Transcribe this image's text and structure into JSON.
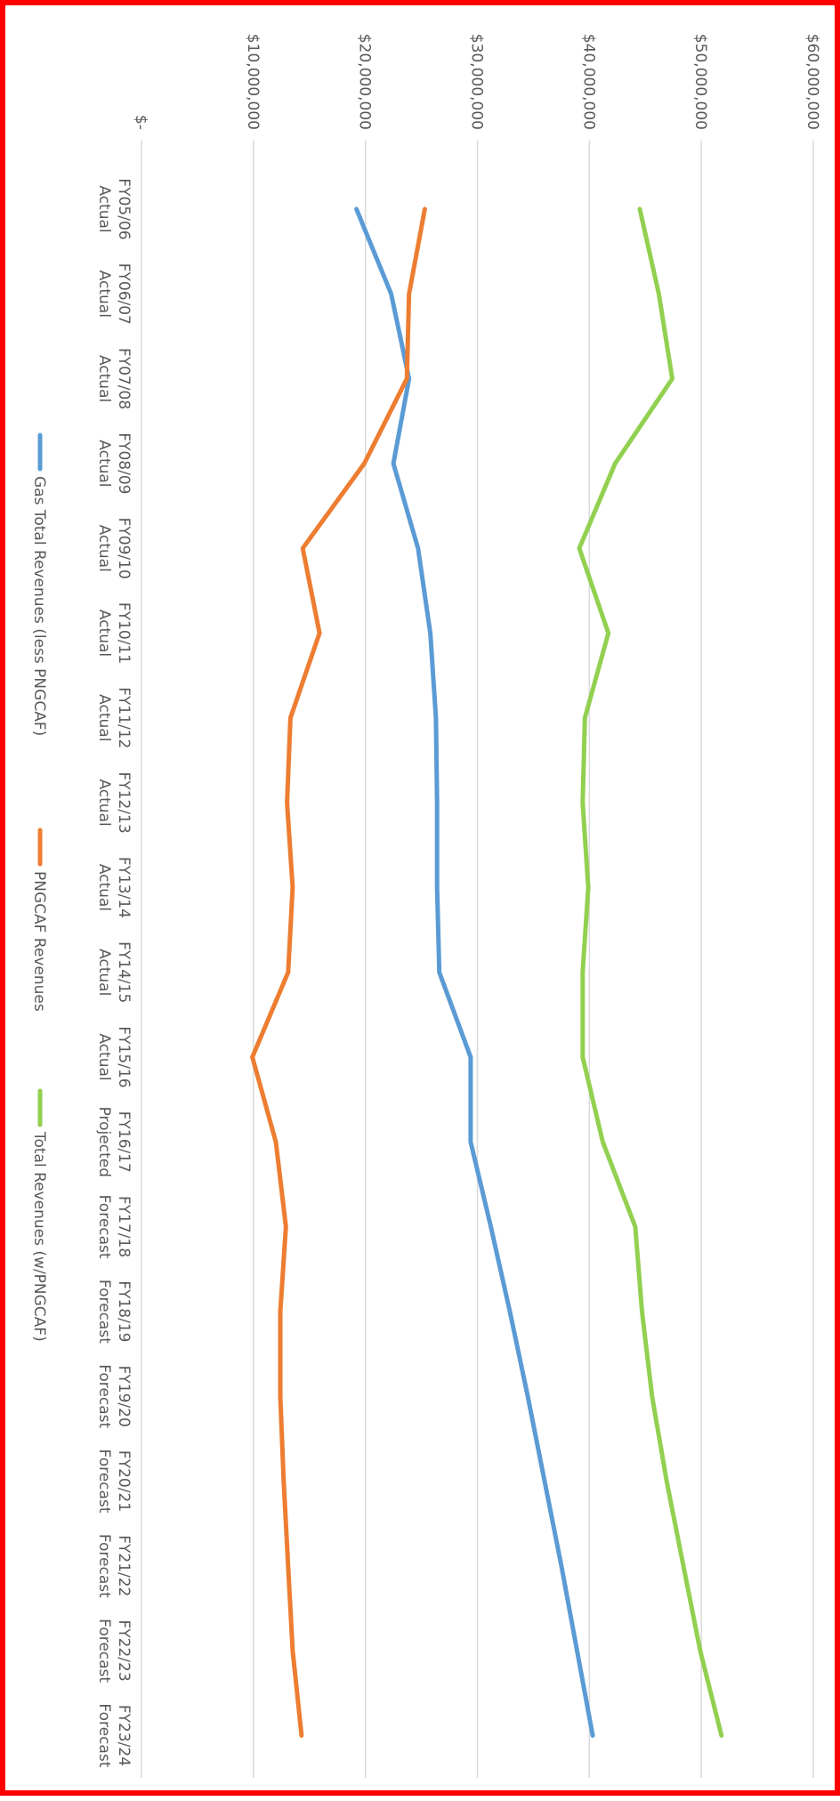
{
  "chart_data": {
    "type": "line",
    "orientation": "rotated-90-clockwise",
    "title": "",
    "xlabel": "",
    "ylabel": "",
    "categories": [
      [
        "FY05/06",
        "Actual"
      ],
      [
        "FY06/07",
        "Actual"
      ],
      [
        "FY07/08",
        "Actual"
      ],
      [
        "FY08/09",
        "Actual"
      ],
      [
        "FY09/10",
        "Actual"
      ],
      [
        "FY10/11",
        "Actual"
      ],
      [
        "FY11/12",
        "Actual"
      ],
      [
        "FY12/13",
        "Actual"
      ],
      [
        "FY13/14",
        "Actual"
      ],
      [
        "FY14/15",
        "Actual"
      ],
      [
        "FY15/16",
        "Actual"
      ],
      [
        "FY16/17",
        "Projected"
      ],
      [
        "FY17/18",
        "Forecast"
      ],
      [
        "FY18/19",
        "Forecast"
      ],
      [
        "FY19/20",
        "Forecast"
      ],
      [
        "FY20/21",
        "Forecast"
      ],
      [
        "FY21/22",
        "Forecast"
      ],
      [
        "FY22/23",
        "Forecast"
      ],
      [
        "FY23/24",
        "Forecast"
      ]
    ],
    "ylim": [
      0,
      60000000
    ],
    "yticks": [
      {
        "value": 0,
        "label": "$-"
      },
      {
        "value": 10000000,
        "label": "$10,000,000"
      },
      {
        "value": 20000000,
        "label": "$20,000,000"
      },
      {
        "value": 30000000,
        "label": "$30,000,000"
      },
      {
        "value": 40000000,
        "label": "$40,000,000"
      },
      {
        "value": 50000000,
        "label": "$50,000,000"
      },
      {
        "value": 60000000,
        "label": "$60,000,000"
      }
    ],
    "grid": true,
    "legend_position": "bottom",
    "series": [
      {
        "name": "Gas Total Revenues (less PNGCAF)",
        "color": "#5b9bd5",
        "values": [
          19200000,
          22300000,
          23900000,
          22500000,
          24700000,
          25800000,
          26300000,
          26400000,
          26400000,
          26600000,
          29400000,
          29400000,
          31200000,
          32900000,
          34500000,
          36000000,
          37500000,
          38900000,
          40300000
        ]
      },
      {
        "name": "PNGCAF Revenues",
        "color": "#ed7d31",
        "values": [
          25300000,
          23900000,
          23700000,
          19900000,
          14400000,
          15900000,
          13300000,
          13000000,
          13500000,
          13100000,
          9900000,
          12000000,
          12900000,
          12400000,
          12400000,
          12700000,
          13100000,
          13500000,
          14300000
        ]
      },
      {
        "name": "Total Revenues (w/PNGCAF)",
        "color": "#92d050",
        "values": [
          44500000,
          46200000,
          47400000,
          42300000,
          39100000,
          41700000,
          39600000,
          39400000,
          39900000,
          39400000,
          39400000,
          41200000,
          44100000,
          44700000,
          45600000,
          46900000,
          48400000,
          49900000,
          51800000
        ]
      }
    ]
  }
}
